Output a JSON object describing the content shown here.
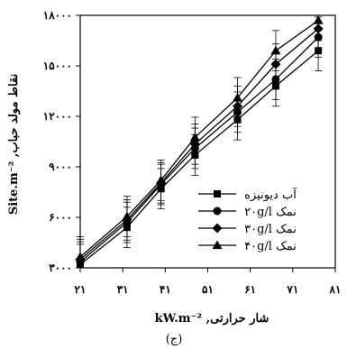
{
  "chart_data": {
    "type": "line",
    "title": "",
    "xlabel": "شار حرارتی, kW.m⁻²",
    "ylabel": "نقاط مولد حباب, Site.m⁻²",
    "caption": "(ج)",
    "xlim": [
      21,
      81
    ],
    "ylim": [
      3000,
      18000
    ],
    "x_ticks": [
      21,
      31,
      41,
      51,
      61,
      71,
      81
    ],
    "x_tick_labels": [
      "۲۱",
      "۳۱",
      "۴۱",
      "۵۱",
      "۶۱",
      "۷۱",
      "۸۱"
    ],
    "y_ticks": [
      3000,
      6000,
      9000,
      12000,
      15000,
      18000
    ],
    "y_tick_labels": [
      "۳۰۰۰",
      "۶۰۰۰",
      "۹۰۰۰",
      "۱۲۰۰۰",
      "۱۵۰۰۰",
      "۱۸۰۰۰"
    ],
    "grid": false,
    "legend_position": "bottom-right",
    "error_bar": 1200,
    "series": [
      {
        "name": "آب دیونیزه",
        "marker": "square",
        "x": [
          21,
          32,
          40,
          48,
          58,
          67,
          77
        ],
        "y": [
          3200,
          5400,
          7700,
          9700,
          11800,
          13800,
          15900
        ]
      },
      {
        "name": "نمک ۲۰g/l",
        "marker": "circle",
        "x": [
          21,
          32,
          40,
          48,
          58,
          67,
          77
        ],
        "y": [
          3350,
          5700,
          7950,
          10100,
          12250,
          14200,
          16700
        ]
      },
      {
        "name": "نمک ۳۰g/l",
        "marker": "diamond",
        "x": [
          21,
          32,
          40,
          48,
          58,
          67,
          77
        ],
        "y": [
          3500,
          5850,
          8050,
          10350,
          12600,
          15100,
          17200
        ]
      },
      {
        "name": "نمک ۴۰g/l",
        "marker": "triangle",
        "x": [
          21,
          32,
          40,
          48,
          58,
          67,
          77
        ],
        "y": [
          3650,
          6050,
          8200,
          10750,
          13100,
          15900,
          17700
        ]
      }
    ]
  }
}
